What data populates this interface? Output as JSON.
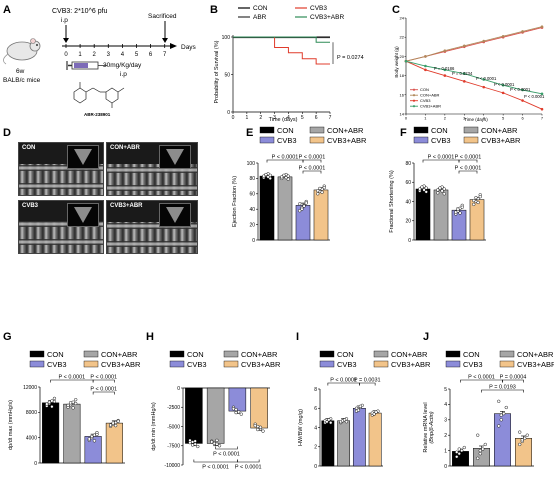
{
  "panels": {
    "A": {
      "letter": "A",
      "virus": "CVB3: 2*10^6 pfu",
      "ip1": "i.p",
      "sacrificed": "Sacrificed",
      "days_axis": [
        "0",
        "1",
        "2",
        "3",
        "4",
        "5",
        "6",
        "7"
      ],
      "days_label": "Days",
      "dose": "30mg/Kg/day",
      "ip2": "i.p",
      "mouse": [
        "6w",
        "BALB/c mice"
      ],
      "compound": "ABR-238901"
    },
    "B": {
      "letter": "B",
      "legend": [
        "CON",
        "ABR",
        "CVB3",
        "CVB3+ABR"
      ],
      "ylabel": "Probability of Survival (%)",
      "xlabel": "Time (days)",
      "pval": "P = 0.0274"
    },
    "C": {
      "letter": "C",
      "ylabel": "Body weight (g)",
      "xlabel": "Time (days)",
      "legend": [
        "CON",
        "CON+ABR",
        "CVB3",
        "CVB3+ABR"
      ],
      "pvals": [
        "P = 0.0186",
        "P = 0.0234",
        "P < 0.0001",
        "P < 0.0001",
        "P < 0.0001",
        "P < 0.0001"
      ]
    },
    "D": {
      "letter": "D",
      "labels": [
        "CON",
        "CON+ABR",
        "CVB3",
        "CVB3+ABR"
      ]
    },
    "E": {
      "letter": "E",
      "ylabel": "Ejection Fraction (%)",
      "legend": [
        "CON",
        "CON+ABR",
        "CVB3",
        "CVB3+ABR"
      ],
      "pvals": [
        "P < 0.0001",
        "P < 0.0001",
        "P < 0.0001"
      ]
    },
    "F": {
      "letter": "F",
      "ylabel": "Fractional Shortening (%)",
      "legend": [
        "CON",
        "CON+ABR",
        "CVB3",
        "CVB3+ABR"
      ],
      "pvals": [
        "P < 0.0001",
        "P < 0.0001",
        "P < 0.0001"
      ]
    },
    "G": {
      "letter": "G",
      "ylabel": "dp/dt max (mmHg/s)",
      "legend": [
        "CON",
        "CON+ABR",
        "CVB3",
        "CVB3+ABR"
      ],
      "pvals": [
        "P < 0.0001",
        "P < 0.0001",
        "P < 0.0001"
      ]
    },
    "H": {
      "letter": "H",
      "ylabel": "dp/dt min (mmHg/s)",
      "legend": [
        "CON",
        "CON+ABR",
        "CVB3",
        "CVB3+ABR"
      ],
      "pvals": [
        "P < 0.0001",
        "P < 0.0001",
        "P < 0.0001"
      ]
    },
    "I": {
      "letter": "I",
      "ylabel": "HW/BW (mg/g)",
      "legend": [
        "CON",
        "CON+ABR",
        "CVB3",
        "CVB3+ABR"
      ],
      "pvals": [
        "P < 0.0001",
        "P = 0.0031"
      ]
    },
    "J": {
      "letter": "J",
      "ylabel": [
        "Relative mRNA level",
        "(Bnp/β-Actin)"
      ],
      "legend": [
        "CON",
        "CON+ABR",
        "CVB3",
        "CVB3+ABR"
      ],
      "pvals": [
        "P < 0.0001",
        "P = 0.0004",
        "P = 0.0193"
      ]
    }
  },
  "colors": {
    "con": "#000000",
    "conabr": "#a6a6a6",
    "cvb3": "#8c8cd9",
    "cvb3abr": "#f2c48a",
    "red": "#e03c2c",
    "green": "#2e8b57"
  },
  "chart_data": [
    {
      "id": "B",
      "type": "line",
      "xlabel": "Time (days)",
      "ylabel": "Probability of Survival (%)",
      "xlim": [
        0,
        7
      ],
      "ylim": [
        0,
        100
      ],
      "xticks": [
        0,
        1,
        2,
        3,
        4,
        5,
        6,
        7
      ],
      "yticks": [
        0,
        50,
        100
      ],
      "series": [
        {
          "name": "CON",
          "x": [
            0,
            7
          ],
          "y": [
            100,
            100
          ]
        },
        {
          "name": "ABR",
          "x": [
            0,
            7
          ],
          "y": [
            100,
            100
          ]
        },
        {
          "name": "CVB3",
          "x": [
            0,
            3,
            3,
            4,
            4,
            5,
            5,
            6,
            6,
            7
          ],
          "y": [
            100,
            100,
            86,
            86,
            79,
            79,
            71,
            71,
            64,
            64
          ]
        },
        {
          "name": "CVB3+ABR",
          "x": [
            0,
            6,
            6,
            7
          ],
          "y": [
            100,
            100,
            93,
            93
          ]
        }
      ]
    },
    {
      "id": "C",
      "type": "line",
      "xlabel": "Time (days)",
      "ylabel": "Body weight (g)",
      "xlim": [
        0,
        7
      ],
      "ylim": [
        14,
        24
      ],
      "xticks": [
        0,
        1,
        2,
        3,
        4,
        5,
        6,
        7
      ],
      "yticks": [
        14,
        16,
        18,
        20,
        22,
        24
      ],
      "series": [
        {
          "name": "CON",
          "x": [
            0,
            1,
            2,
            3,
            4,
            5,
            6,
            7
          ],
          "y": [
            19.5,
            20.0,
            20.5,
            21.0,
            21.5,
            22.0,
            22.5,
            23.0
          ]
        },
        {
          "name": "CON+ABR",
          "x": [
            0,
            1,
            2,
            3,
            4,
            5,
            6,
            7
          ],
          "y": [
            19.5,
            20.0,
            20.6,
            21.1,
            21.6,
            22.1,
            22.6,
            23.1
          ]
        },
        {
          "name": "CVB3",
          "x": [
            0,
            1,
            2,
            3,
            4,
            5,
            6,
            7
          ],
          "y": [
            19.5,
            18.6,
            18.0,
            17.4,
            16.8,
            16.2,
            15.4,
            14.5
          ]
        },
        {
          "name": "CVB3+ABR",
          "x": [
            0,
            1,
            2,
            3,
            4,
            5,
            6,
            7
          ],
          "y": [
            19.5,
            19.0,
            18.6,
            18.2,
            17.6,
            17.0,
            16.5,
            16.1
          ]
        }
      ]
    },
    {
      "id": "E",
      "type": "bar",
      "ylabel": "Ejection Fraction (%)",
      "ylim": [
        0,
        100
      ],
      "yticks": [
        0,
        20,
        40,
        60,
        80,
        100
      ],
      "categories": [
        "CON",
        "CON+ABR",
        "CVB3",
        "CVB3+ABR"
      ],
      "values": [
        83,
        82,
        45,
        65
      ],
      "points": [
        [
          81,
          84,
          86,
          80,
          83,
          85,
          82,
          84
        ],
        [
          80,
          83,
          85,
          79,
          82,
          84,
          81,
          83
        ],
        [
          38,
          42,
          45,
          50,
          47,
          40,
          44,
          48
        ],
        [
          60,
          63,
          66,
          70,
          64,
          67,
          62,
          68
        ]
      ]
    },
    {
      "id": "F",
      "type": "bar",
      "ylabel": "Fractional Shortening (%)",
      "ylim": [
        0,
        80
      ],
      "yticks": [
        0,
        20,
        40,
        60,
        80
      ],
      "categories": [
        "CON",
        "CON+ABR",
        "CVB3",
        "CVB3+ABR"
      ],
      "values": [
        53,
        52,
        31,
        42
      ],
      "points": [
        [
          51,
          54,
          56,
          50,
          53,
          55,
          52,
          54
        ],
        [
          49,
          53,
          55,
          48,
          52,
          54,
          51,
          53
        ],
        [
          27,
          30,
          33,
          36,
          29,
          32,
          28,
          34
        ],
        [
          37,
          40,
          43,
          47,
          41,
          44,
          39,
          45
        ]
      ]
    },
    {
      "id": "G",
      "type": "bar",
      "ylabel": "dp/dt max (mmHg/s)",
      "ylim": [
        0,
        12000
      ],
      "yticks": [
        0,
        4000,
        8000,
        12000
      ],
      "categories": [
        "CON",
        "CON+ABR",
        "CVB3",
        "CVB3+ABR"
      ],
      "values": [
        9500,
        9300,
        4200,
        6300
      ],
      "points": [
        [
          9000,
          9400,
          9800,
          10200,
          9300,
          9600,
          8900,
          9700
        ],
        [
          8800,
          9200,
          9600,
          10000,
          9100,
          9500,
          8700,
          9400
        ],
        [
          3600,
          4000,
          4400,
          4800,
          3800,
          4200,
          3500,
          4500
        ],
        [
          5800,
          6100,
          6400,
          6700,
          6000,
          6300,
          5900,
          6600
        ]
      ]
    },
    {
      "id": "H",
      "type": "bar",
      "ylabel": "dp/dt min (mmHg/s)",
      "ylim": [
        -10000,
        0
      ],
      "yticks": [
        -10000,
        -7500,
        -5000,
        -2500,
        0
      ],
      "categories": [
        "CON",
        "CON+ABR",
        "CVB3",
        "CVB3+ABR"
      ],
      "values": [
        -7200,
        -7200,
        -3000,
        -5200
      ],
      "points": [
        [
          -6800,
          -7000,
          -7300,
          -7600,
          -7100,
          -7400,
          -6900
        ],
        [
          -6900,
          -7100,
          -7300,
          -7500,
          -7000,
          -7200,
          -6800
        ],
        [
          -2500,
          -2800,
          -3100,
          -3400,
          -2700,
          -3200
        ],
        [
          -4700,
          -5000,
          -5300,
          -5600,
          -4900,
          -5400,
          -5100
        ]
      ]
    },
    {
      "id": "I",
      "type": "bar",
      "ylabel": "HW/BW (mg/g)",
      "ylim": [
        0,
        8
      ],
      "yticks": [
        0,
        2,
        4,
        6,
        8
      ],
      "categories": [
        "CON",
        "CON+ABR",
        "CVB3",
        "CVB3+ABR"
      ],
      "values": [
        4.7,
        4.7,
        6.0,
        5.5
      ],
      "points": [
        [
          4.5,
          4.6,
          4.8,
          4.9,
          4.7,
          4.6,
          4.8,
          4.5
        ],
        [
          4.5,
          4.7,
          4.8,
          4.9,
          4.6,
          4.7,
          4.8,
          4.6
        ],
        [
          5.7,
          5.9,
          6.1,
          6.3,
          6.0,
          5.8,
          6.2
        ],
        [
          5.3,
          5.4,
          5.6,
          5.7,
          5.5,
          5.4,
          5.6
        ]
      ]
    },
    {
      "id": "J",
      "type": "bar",
      "ylabel": "Relative mRNA level (Bnp/β-Actin)",
      "ylim": [
        0,
        5
      ],
      "yticks": [
        0,
        1,
        2,
        3,
        4,
        5
      ],
      "categories": [
        "CON",
        "CON+ABR",
        "CVB3",
        "CVB3+ABR"
      ],
      "values": [
        0.95,
        1.15,
        3.4,
        1.8
      ],
      "points": [
        [
          0.6,
          0.8,
          1.0,
          1.2,
          0.9,
          1.1
        ],
        [
          0.5,
          0.8,
          1.1,
          1.4,
          2.0,
          1.0
        ],
        [
          2.6,
          3.0,
          3.4,
          3.8,
          4.2,
          3.3
        ],
        [
          1.4,
          1.6,
          1.8,
          2.0,
          2.2,
          1.7
        ]
      ]
    }
  ]
}
